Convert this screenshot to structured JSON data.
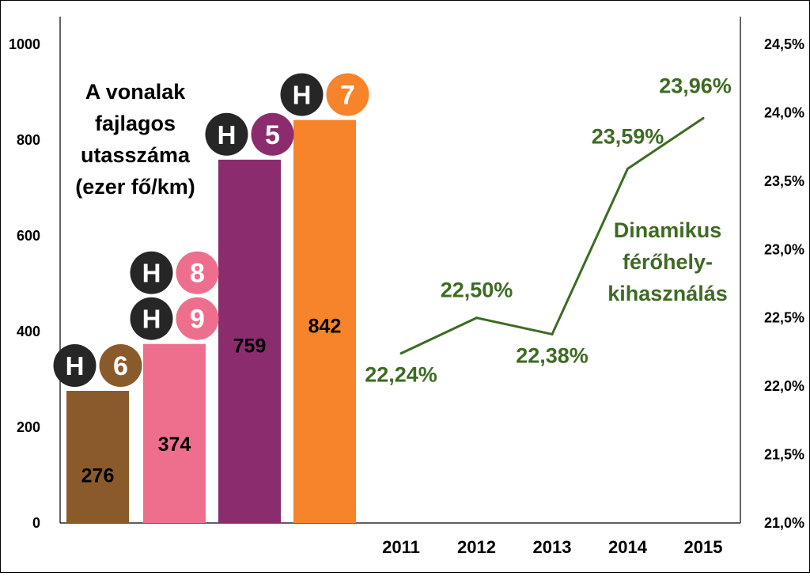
{
  "chart_data": [
    {
      "type": "bar",
      "title": "A vonalak fajlagos utasszáma (ezer fő/km)",
      "title_lines": [
        "A vonalak",
        "fajlagos",
        "utasszáma",
        "(ezer fő/km)"
      ],
      "ylim": [
        0,
        1000
      ],
      "y_ticks": [
        "0",
        "200",
        "400",
        "600",
        "800",
        "1000"
      ],
      "categories": [
        "H6",
        "H8 H9",
        "H5",
        "H7"
      ],
      "values": [
        276,
        374,
        759,
        842
      ],
      "value_labels": [
        "276",
        "374",
        "759",
        "842"
      ],
      "colors": [
        "#8b5a2b",
        "#ee6f8d",
        "#8b2c6e",
        "#f7832b"
      ],
      "line_badges": [
        [
          {
            "letter": "H",
            "number": "6",
            "color": "#8b5a2b"
          }
        ],
        [
          {
            "letter": "H",
            "number": "9",
            "color": "#ee6f8d"
          },
          {
            "letter": "H",
            "number": "8",
            "color": "#ee6f8d"
          }
        ],
        [
          {
            "letter": "H",
            "number": "5",
            "color": "#8b2c6e"
          }
        ],
        [
          {
            "letter": "H",
            "number": "7",
            "color": "#f7832b"
          }
        ]
      ]
    },
    {
      "type": "line",
      "title": "Dinamikus férőhely-kihasználás",
      "title_lines": [
        "Dinamikus",
        "férőhely-",
        "kihasználás"
      ],
      "x": [
        "2011",
        "2012",
        "2013",
        "2014",
        "2015"
      ],
      "values": [
        22.24,
        22.5,
        22.38,
        23.59,
        23.96
      ],
      "value_labels": [
        "22,24%",
        "22,50%",
        "22,38%",
        "23,59%",
        "23,96%"
      ],
      "ylim": [
        21.0,
        24.5
      ],
      "y_ticks": [
        "21,0%",
        "21,5%",
        "22,0%",
        "22,5%",
        "23,0%",
        "23,5%",
        "24,0%",
        "24,5%"
      ],
      "color": "#3d6b23"
    }
  ]
}
